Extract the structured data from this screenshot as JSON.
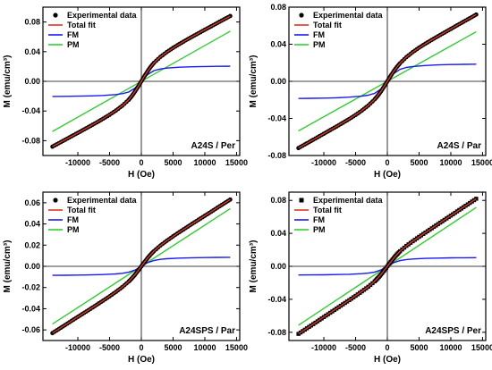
{
  "chart_data": [
    {
      "type": "line",
      "label": "A24S / Per",
      "xlabel": "H (Oe)",
      "ylabel": "M (emu/cm³)",
      "xlim": [
        -15500,
        15500
      ],
      "ylim": [
        -0.1,
        0.1
      ],
      "xticks": [
        -10000,
        -5000,
        0,
        5000,
        10000,
        15000
      ],
      "yticks": [
        -0.08,
        -0.04,
        0.0,
        0.04,
        0.08
      ],
      "x_tick_labels": [
        "-10000",
        "-5000",
        "0",
        "5000",
        "10000",
        "15000"
      ],
      "y_tick_labels": [
        "-0.08",
        "-0.04",
        "0.00",
        "0.04",
        "0.08"
      ],
      "legend_position": "top-left",
      "series": [
        {
          "name": "Experimental data",
          "style": "scatter",
          "marker": "circle",
          "color": "#000000",
          "x": [
            -14000,
            -13000,
            -12000,
            -11000,
            -10000,
            -9000,
            -8000,
            -7000,
            -6000,
            -5000,
            -4000,
            -3000,
            -2000,
            -1500,
            -1000,
            -500,
            0,
            500,
            1000,
            1500,
            2000,
            3000,
            4000,
            5000,
            6000,
            7000,
            8000,
            9000,
            10000,
            11000,
            12000,
            13000,
            14000
          ],
          "y": [
            -0.088,
            -0.0834,
            -0.0788,
            -0.0741,
            -0.0695,
            -0.0648,
            -0.0601,
            -0.0553,
            -0.0503,
            -0.0451,
            -0.0394,
            -0.0329,
            -0.025,
            -0.0199,
            -0.0138,
            -0.0071,
            0,
            0.0071,
            0.0138,
            0.0199,
            0.025,
            0.0329,
            0.0394,
            0.0451,
            0.0503,
            0.0553,
            0.0601,
            0.0648,
            0.0695,
            0.0741,
            0.0788,
            0.0834,
            0.088
          ]
        },
        {
          "name": "Total fit",
          "style": "line",
          "color": "#d9381e",
          "x": [
            -14000,
            -12000,
            -10000,
            -8000,
            -6000,
            -4000,
            -3000,
            -2000,
            -1000,
            0,
            1000,
            2000,
            3000,
            4000,
            6000,
            8000,
            10000,
            12000,
            14000
          ],
          "y": [
            -0.088,
            -0.0788,
            -0.0695,
            -0.0601,
            -0.0503,
            -0.0394,
            -0.0329,
            -0.025,
            -0.0138,
            0,
            0.0138,
            0.025,
            0.0329,
            0.0394,
            0.0503,
            0.0601,
            0.0695,
            0.0788,
            0.088
          ]
        },
        {
          "name": "FM",
          "style": "line",
          "color": "#1a1aee",
          "x": [
            -14000,
            -12000,
            -10000,
            -8000,
            -6000,
            -4000,
            -3000,
            -2000,
            -1000,
            0,
            1000,
            2000,
            3000,
            4000,
            6000,
            8000,
            10000,
            12000,
            14000
          ],
          "y": [
            -0.0204,
            -0.0202,
            -0.02,
            -0.0196,
            -0.019,
            -0.0178,
            -0.0166,
            -0.0144,
            -0.0092,
            0,
            0.0092,
            0.0144,
            0.0166,
            0.0178,
            0.019,
            0.0196,
            0.02,
            0.0202,
            0.0204
          ]
        },
        {
          "name": "PM",
          "style": "line",
          "color": "#33cc33",
          "x": [
            -14000,
            14000
          ],
          "y": [
            -0.0676,
            0.0676
          ]
        }
      ]
    },
    {
      "type": "line",
      "label": "A24S / Par",
      "xlabel": "H (Oe)",
      "ylabel": "M (emu/cm³)",
      "xlim": [
        -15500,
        15500
      ],
      "ylim": [
        -0.08,
        0.08
      ],
      "xticks": [
        -10000,
        -5000,
        0,
        5000,
        10000,
        15000
      ],
      "yticks": [
        -0.08,
        -0.04,
        0.0,
        0.04,
        0.08
      ],
      "x_tick_labels": [
        "-10000",
        "-5000",
        "0",
        "5000",
        "10000",
        "15000"
      ],
      "y_tick_labels": [
        "-0.08",
        "-0.04",
        "0.00",
        "0.04",
        "0.08"
      ],
      "legend_position": "top-left",
      "series": [
        {
          "name": "Experimental data",
          "style": "scatter",
          "marker": "circle",
          "color": "#000000",
          "x": [
            -14000,
            -13000,
            -12000,
            -11000,
            -10000,
            -9000,
            -8000,
            -7000,
            -6000,
            -5000,
            -4000,
            -3000,
            -2000,
            -1500,
            -1000,
            -500,
            0,
            500,
            1000,
            1500,
            2000,
            3000,
            4000,
            5000,
            6000,
            7000,
            8000,
            9000,
            10000,
            11000,
            12000,
            13000,
            14000
          ],
          "y": [
            -0.072,
            -0.0681,
            -0.0643,
            -0.0604,
            -0.0565,
            -0.0526,
            -0.0487,
            -0.0447,
            -0.0406,
            -0.0363,
            -0.0315,
            -0.0261,
            -0.0195,
            -0.0155,
            -0.0108,
            -0.0056,
            0,
            0.0056,
            0.0108,
            0.0155,
            0.0195,
            0.0261,
            0.0315,
            0.0363,
            0.0406,
            0.0447,
            0.0487,
            0.0526,
            0.0565,
            0.0604,
            0.0643,
            0.0681,
            0.072
          ]
        },
        {
          "name": "Total fit",
          "style": "line",
          "color": "#d9381e",
          "x": [
            -14000,
            -12000,
            -10000,
            -8000,
            -6000,
            -4000,
            -3000,
            -2000,
            -1000,
            0,
            1000,
            2000,
            3000,
            4000,
            6000,
            8000,
            10000,
            12000,
            14000
          ],
          "y": [
            -0.072,
            -0.0643,
            -0.0565,
            -0.0487,
            -0.0406,
            -0.0315,
            -0.0261,
            -0.0195,
            -0.0108,
            0,
            0.0108,
            0.0195,
            0.0261,
            0.0315,
            0.0406,
            0.0487,
            0.0565,
            0.0643,
            0.072
          ]
        },
        {
          "name": "FM",
          "style": "line",
          "color": "#1a1aee",
          "x": [
            -14000,
            -12000,
            -10000,
            -8000,
            -6000,
            -4000,
            -3000,
            -2000,
            -1000,
            0,
            1000,
            2000,
            3000,
            4000,
            6000,
            8000,
            10000,
            12000,
            14000
          ],
          "y": [
            -0.0185,
            -0.0183,
            -0.0181,
            -0.0177,
            -0.0171,
            -0.016,
            -0.0149,
            -0.0129,
            -0.0083,
            0,
            0.0083,
            0.0129,
            0.0149,
            0.016,
            0.0171,
            0.0177,
            0.0181,
            0.0183,
            0.0185
          ]
        },
        {
          "name": "PM",
          "style": "line",
          "color": "#33cc33",
          "x": [
            -14000,
            14000
          ],
          "y": [
            -0.0535,
            0.0535
          ]
        }
      ]
    },
    {
      "type": "line",
      "label": "A24SPS / Par",
      "xlabel": "H (Oe)",
      "ylabel": "M (emu/cm³)",
      "xlim": [
        -15500,
        15500
      ],
      "ylim": [
        -0.07,
        0.07
      ],
      "xticks": [
        -10000,
        -5000,
        0,
        5000,
        10000,
        15000
      ],
      "yticks": [
        -0.06,
        -0.04,
        -0.02,
        0.0,
        0.02,
        0.04,
        0.06
      ],
      "x_tick_labels": [
        "-10000",
        "-5000",
        "0",
        "5000",
        "10000",
        "15000"
      ],
      "y_tick_labels": [
        "-0.06",
        "-0.04",
        "-0.02",
        "0.00",
        "0.02",
        "0.04",
        "0.06"
      ],
      "legend_position": "top-left",
      "series": [
        {
          "name": "Experimental data",
          "style": "scatter",
          "marker": "circle",
          "color": "#000000",
          "x": [
            -14000,
            -13000,
            -12000,
            -11000,
            -10000,
            -9000,
            -8000,
            -7000,
            -6000,
            -5000,
            -4000,
            -3000,
            -2000,
            -1500,
            -1000,
            -500,
            0,
            500,
            1000,
            1500,
            2000,
            3000,
            4000,
            5000,
            6000,
            7000,
            8000,
            9000,
            10000,
            11000,
            12000,
            13000,
            14000
          ],
          "y": [
            -0.063,
            -0.0592,
            -0.0554,
            -0.0515,
            -0.0477,
            -0.0439,
            -0.0401,
            -0.0362,
            -0.0323,
            -0.0283,
            -0.0241,
            -0.0196,
            -0.0144,
            -0.0114,
            -0.0079,
            -0.0041,
            0,
            0.0041,
            0.0079,
            0.0114,
            0.0144,
            0.0196,
            0.0241,
            0.0283,
            0.0323,
            0.0362,
            0.0401,
            0.0439,
            0.0477,
            0.0515,
            0.0554,
            0.0592,
            0.063
          ]
        },
        {
          "name": "Total fit",
          "style": "line",
          "color": "#d9381e",
          "x": [
            -14000,
            -12000,
            -10000,
            -8000,
            -6000,
            -4000,
            -3000,
            -2000,
            -1000,
            0,
            1000,
            2000,
            3000,
            4000,
            6000,
            8000,
            10000,
            12000,
            14000
          ],
          "y": [
            -0.063,
            -0.0554,
            -0.0477,
            -0.0401,
            -0.0323,
            -0.0241,
            -0.0196,
            -0.0144,
            -0.0079,
            0,
            0.0079,
            0.0144,
            0.0196,
            0.0241,
            0.0323,
            0.0401,
            0.0477,
            0.0554,
            0.063
          ]
        },
        {
          "name": "FM",
          "style": "line",
          "color": "#1a1aee",
          "x": [
            -14000,
            -12000,
            -10000,
            -8000,
            -6000,
            -4000,
            -3000,
            -2000,
            -1000,
            0,
            1000,
            2000,
            3000,
            4000,
            6000,
            8000,
            10000,
            12000,
            14000
          ],
          "y": [
            -0.0085,
            -0.0084,
            -0.0083,
            -0.0081,
            -0.0078,
            -0.0072,
            -0.0066,
            -0.0056,
            -0.0035,
            0,
            0.0035,
            0.0056,
            0.0066,
            0.0072,
            0.0078,
            0.0081,
            0.0083,
            0.0084,
            0.0085
          ]
        },
        {
          "name": "PM",
          "style": "line",
          "color": "#33cc33",
          "x": [
            -14000,
            14000
          ],
          "y": [
            -0.0545,
            0.0545
          ]
        }
      ]
    },
    {
      "type": "line",
      "label": "A24SPS / Per",
      "xlabel": "H (Oe)",
      "ylabel": "M (emu/cm³)",
      "xlim": [
        -15500,
        15500
      ],
      "ylim": [
        -0.09,
        0.09
      ],
      "xticks": [
        -10000,
        -5000,
        0,
        5000,
        10000,
        15000
      ],
      "yticks": [
        -0.08,
        -0.04,
        0.0,
        0.04,
        0.08
      ],
      "x_tick_labels": [
        "-10000",
        "-5000",
        "0",
        "5000",
        "10000",
        "15000"
      ],
      "y_tick_labels": [
        "-0.08",
        "-0.04",
        "0.00",
        "0.04",
        "0.08"
      ],
      "legend_position": "top-left",
      "series": [
        {
          "name": "Experimental data",
          "style": "scatter",
          "marker": "square",
          "color": "#000000",
          "x": [
            -14000,
            -13000,
            -12000,
            -11000,
            -10000,
            -9000,
            -8000,
            -7000,
            -6000,
            -5000,
            -4000,
            -3000,
            -2000,
            -1500,
            -1000,
            -500,
            0,
            500,
            1000,
            1500,
            2000,
            3000,
            4000,
            5000,
            6000,
            7000,
            8000,
            9000,
            10000,
            11000,
            12000,
            13000,
            14000
          ],
          "y": [
            -0.082,
            -0.0769,
            -0.0718,
            -0.0667,
            -0.0615,
            -0.0564,
            -0.0513,
            -0.0461,
            -0.041,
            -0.0358,
            -0.0304,
            -0.0248,
            -0.0183,
            -0.0144,
            -0.0099,
            -0.0051,
            0,
            0.0051,
            0.0099,
            0.0144,
            0.0183,
            0.0248,
            0.0304,
            0.0358,
            0.041,
            0.0461,
            0.0513,
            0.0564,
            0.0615,
            0.0667,
            0.0718,
            0.0769,
            0.082
          ]
        },
        {
          "name": "Total fit",
          "style": "line",
          "color": "#d9381e",
          "x": [
            -14000,
            -12000,
            -10000,
            -8000,
            -6000,
            -4000,
            -3000,
            -2000,
            -1000,
            0,
            1000,
            2000,
            3000,
            4000,
            6000,
            8000,
            10000,
            12000,
            14000
          ],
          "y": [
            -0.082,
            -0.0718,
            -0.0615,
            -0.0513,
            -0.041,
            -0.0304,
            -0.0248,
            -0.0183,
            -0.0099,
            0,
            0.0099,
            0.0183,
            0.0248,
            0.0304,
            0.041,
            0.0513,
            0.0615,
            0.0718,
            0.082
          ]
        },
        {
          "name": "FM",
          "style": "line",
          "color": "#1a1aee",
          "x": [
            -14000,
            -12000,
            -10000,
            -8000,
            -6000,
            -4000,
            -3000,
            -2000,
            -1000,
            0,
            1000,
            2000,
            3000,
            4000,
            6000,
            8000,
            10000,
            12000,
            14000
          ],
          "y": [
            -0.0105,
            -0.0104,
            -0.0103,
            -0.01,
            -0.0097,
            -0.0089,
            -0.0082,
            -0.0069,
            -0.0043,
            0,
            0.0043,
            0.0069,
            0.0082,
            0.0089,
            0.0097,
            0.01,
            0.0103,
            0.0104,
            0.0105
          ]
        },
        {
          "name": "PM",
          "style": "line",
          "color": "#33cc33",
          "x": [
            -14000,
            14000
          ],
          "y": [
            -0.0715,
            0.0715
          ]
        }
      ]
    }
  ]
}
